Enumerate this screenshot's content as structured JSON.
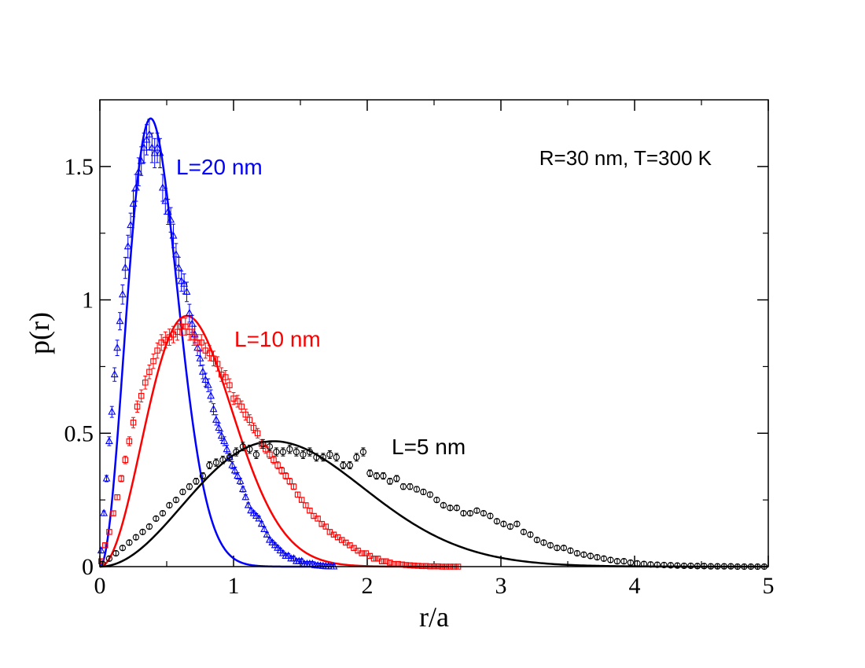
{
  "chart_data": {
    "type": "scatter",
    "xlabel": "r/a",
    "ylabel": "p(r)",
    "xlim": [
      0,
      5
    ],
    "ylim": [
      0,
      1.75
    ],
    "x_ticks": [
      0,
      1,
      2,
      3,
      4,
      5
    ],
    "x_tick_labels": [
      "0",
      "1",
      "2",
      "3",
      "4",
      "5"
    ],
    "y_ticks": [
      0,
      0.5,
      1,
      1.5
    ],
    "y_tick_labels": [
      "0",
      "0.5",
      "1",
      "1.5"
    ],
    "annotation": "R=30 nm, T=300 K",
    "series": [
      {
        "name": "L=20 nm",
        "label": "L=20 nm",
        "color": "#0000ff",
        "marker": "triangle",
        "curve": {
          "peak_x": 0.38,
          "peak_y": 1.68,
          "end_x": 1.6
        },
        "points": [
          [
            0.01,
            0.06
          ],
          [
            0.03,
            0.2
          ],
          [
            0.05,
            0.33
          ],
          [
            0.07,
            0.47
          ],
          [
            0.09,
            0.58
          ],
          [
            0.11,
            0.72
          ],
          [
            0.13,
            0.82
          ],
          [
            0.15,
            0.92
          ],
          [
            0.17,
            1.02
          ],
          [
            0.19,
            1.12
          ],
          [
            0.21,
            1.2
          ],
          [
            0.23,
            1.28
          ],
          [
            0.25,
            1.36
          ],
          [
            0.27,
            1.42
          ],
          [
            0.29,
            1.48
          ],
          [
            0.31,
            1.52
          ],
          [
            0.33,
            1.57
          ],
          [
            0.35,
            1.6
          ],
          [
            0.37,
            1.62
          ],
          [
            0.39,
            1.57
          ],
          [
            0.41,
            1.55
          ],
          [
            0.43,
            1.57
          ],
          [
            0.45,
            1.55
          ],
          [
            0.47,
            1.42
          ],
          [
            0.49,
            1.37
          ],
          [
            0.51,
            1.33
          ],
          [
            0.53,
            1.3
          ],
          [
            0.55,
            1.24
          ],
          [
            0.57,
            1.17
          ],
          [
            0.59,
            1.12
          ],
          [
            0.61,
            1.07
          ],
          [
            0.63,
            1.06
          ],
          [
            0.65,
            1.03
          ],
          [
            0.67,
            0.95
          ],
          [
            0.69,
            0.91
          ],
          [
            0.71,
            0.87
          ],
          [
            0.73,
            0.82
          ],
          [
            0.75,
            0.78
          ],
          [
            0.77,
            0.73
          ],
          [
            0.79,
            0.7
          ],
          [
            0.81,
            0.68
          ],
          [
            0.83,
            0.64
          ],
          [
            0.85,
            0.59
          ],
          [
            0.87,
            0.55
          ],
          [
            0.89,
            0.52
          ],
          [
            0.91,
            0.49
          ],
          [
            0.93,
            0.47
          ],
          [
            0.95,
            0.44
          ],
          [
            0.97,
            0.41
          ],
          [
            0.99,
            0.38
          ],
          [
            1.01,
            0.36
          ],
          [
            1.03,
            0.34
          ],
          [
            1.05,
            0.32
          ],
          [
            1.07,
            0.29
          ],
          [
            1.09,
            0.26
          ],
          [
            1.11,
            0.23
          ],
          [
            1.13,
            0.21
          ],
          [
            1.15,
            0.2
          ],
          [
            1.17,
            0.19
          ],
          [
            1.19,
            0.18
          ],
          [
            1.21,
            0.16
          ],
          [
            1.23,
            0.14
          ],
          [
            1.25,
            0.12
          ],
          [
            1.27,
            0.1
          ],
          [
            1.29,
            0.09
          ],
          [
            1.31,
            0.08
          ],
          [
            1.33,
            0.07
          ],
          [
            1.35,
            0.06
          ],
          [
            1.37,
            0.05
          ],
          [
            1.39,
            0.04
          ],
          [
            1.41,
            0.04
          ],
          [
            1.43,
            0.03
          ],
          [
            1.45,
            0.03
          ],
          [
            1.47,
            0.02
          ],
          [
            1.49,
            0.02
          ],
          [
            1.51,
            0.02
          ],
          [
            1.53,
            0.01
          ],
          [
            1.55,
            0.01
          ],
          [
            1.57,
            0.01
          ],
          [
            1.59,
            0.01
          ],
          [
            1.61,
            0.005
          ],
          [
            1.63,
            0.004
          ],
          [
            1.65,
            0.003
          ],
          [
            1.67,
            0.002
          ],
          [
            1.69,
            0.001
          ],
          [
            1.71,
            0.001
          ],
          [
            1.73,
            0.0
          ],
          [
            1.75,
            0.0
          ]
        ]
      },
      {
        "name": "L=10 nm",
        "label": "L=10 nm",
        "color": "#ff0000",
        "marker": "square",
        "curve": {
          "peak_x": 0.65,
          "peak_y": 0.94,
          "end_x": 2.6
        },
        "points": [
          [
            0.01,
            0.02
          ],
          [
            0.04,
            0.08
          ],
          [
            0.07,
            0.13
          ],
          [
            0.1,
            0.2
          ],
          [
            0.13,
            0.26
          ],
          [
            0.16,
            0.33
          ],
          [
            0.19,
            0.4
          ],
          [
            0.22,
            0.47
          ],
          [
            0.25,
            0.54
          ],
          [
            0.28,
            0.6
          ],
          [
            0.31,
            0.64
          ],
          [
            0.34,
            0.69
          ],
          [
            0.37,
            0.73
          ],
          [
            0.4,
            0.77
          ],
          [
            0.43,
            0.81
          ],
          [
            0.46,
            0.84
          ],
          [
            0.49,
            0.85
          ],
          [
            0.52,
            0.86
          ],
          [
            0.55,
            0.87
          ],
          [
            0.58,
            0.88
          ],
          [
            0.61,
            0.9
          ],
          [
            0.64,
            0.9
          ],
          [
            0.67,
            0.88
          ],
          [
            0.7,
            0.86
          ],
          [
            0.73,
            0.84
          ],
          [
            0.76,
            0.84
          ],
          [
            0.79,
            0.81
          ],
          [
            0.82,
            0.8
          ],
          [
            0.85,
            0.78
          ],
          [
            0.88,
            0.76
          ],
          [
            0.91,
            0.72
          ],
          [
            0.94,
            0.71
          ],
          [
            0.97,
            0.68
          ],
          [
            1.0,
            0.63
          ],
          [
            1.03,
            0.62
          ],
          [
            1.06,
            0.6
          ],
          [
            1.09,
            0.57
          ],
          [
            1.12,
            0.55
          ],
          [
            1.15,
            0.52
          ],
          [
            1.18,
            0.5
          ],
          [
            1.21,
            0.46
          ],
          [
            1.24,
            0.44
          ],
          [
            1.27,
            0.42
          ],
          [
            1.3,
            0.4
          ],
          [
            1.33,
            0.38
          ],
          [
            1.36,
            0.36
          ],
          [
            1.39,
            0.34
          ],
          [
            1.42,
            0.32
          ],
          [
            1.45,
            0.3
          ],
          [
            1.48,
            0.27
          ],
          [
            1.51,
            0.25
          ],
          [
            1.54,
            0.23
          ],
          [
            1.57,
            0.21
          ],
          [
            1.6,
            0.19
          ],
          [
            1.63,
            0.18
          ],
          [
            1.66,
            0.16
          ],
          [
            1.69,
            0.15
          ],
          [
            1.72,
            0.13
          ],
          [
            1.75,
            0.12
          ],
          [
            1.78,
            0.11
          ],
          [
            1.81,
            0.1
          ],
          [
            1.84,
            0.09
          ],
          [
            1.87,
            0.08
          ],
          [
            1.9,
            0.07
          ],
          [
            1.93,
            0.06
          ],
          [
            1.96,
            0.05
          ],
          [
            1.99,
            0.05
          ],
          [
            2.02,
            0.04
          ],
          [
            2.05,
            0.03
          ],
          [
            2.08,
            0.03
          ],
          [
            2.11,
            0.02
          ],
          [
            2.14,
            0.02
          ],
          [
            2.17,
            0.015
          ],
          [
            2.2,
            0.01
          ],
          [
            2.23,
            0.01
          ],
          [
            2.26,
            0.008
          ],
          [
            2.29,
            0.006
          ],
          [
            2.32,
            0.005
          ],
          [
            2.35,
            0.004
          ],
          [
            2.38,
            0.003
          ],
          [
            2.41,
            0.002
          ],
          [
            2.44,
            0.002
          ],
          [
            2.47,
            0.001
          ],
          [
            2.5,
            0.001
          ],
          [
            2.53,
            0.001
          ],
          [
            2.56,
            0.0
          ],
          [
            2.59,
            0.0
          ],
          [
            2.62,
            0.0
          ],
          [
            2.65,
            0.0
          ],
          [
            2.68,
            0.0
          ]
        ]
      },
      {
        "name": "L=5 nm",
        "label": "L=5 nm",
        "color": "#000000",
        "marker": "circle",
        "curve": {
          "peak_x": 1.3,
          "peak_y": 0.47,
          "end_x": 5.0
        },
        "points": [
          [
            0.02,
            0.01
          ],
          [
            0.07,
            0.03
          ],
          [
            0.12,
            0.05
          ],
          [
            0.17,
            0.07
          ],
          [
            0.22,
            0.09
          ],
          [
            0.27,
            0.11
          ],
          [
            0.32,
            0.13
          ],
          [
            0.37,
            0.15
          ],
          [
            0.42,
            0.18
          ],
          [
            0.47,
            0.2
          ],
          [
            0.52,
            0.23
          ],
          [
            0.57,
            0.25
          ],
          [
            0.62,
            0.28
          ],
          [
            0.67,
            0.3
          ],
          [
            0.72,
            0.32
          ],
          [
            0.77,
            0.34
          ],
          [
            0.82,
            0.38
          ],
          [
            0.87,
            0.39
          ],
          [
            0.92,
            0.4
          ],
          [
            0.97,
            0.41
          ],
          [
            1.02,
            0.43
          ],
          [
            1.07,
            0.45
          ],
          [
            1.12,
            0.44
          ],
          [
            1.17,
            0.42
          ],
          [
            1.22,
            0.46
          ],
          [
            1.27,
            0.45
          ],
          [
            1.32,
            0.43
          ],
          [
            1.37,
            0.43
          ],
          [
            1.42,
            0.44
          ],
          [
            1.47,
            0.43
          ],
          [
            1.52,
            0.42
          ],
          [
            1.57,
            0.43
          ],
          [
            1.62,
            0.41
          ],
          [
            1.67,
            0.41
          ],
          [
            1.72,
            0.42
          ],
          [
            1.77,
            0.41
          ],
          [
            1.82,
            0.38
          ],
          [
            1.87,
            0.38
          ],
          [
            1.92,
            0.41
          ],
          [
            1.97,
            0.43
          ],
          [
            2.02,
            0.35
          ],
          [
            2.07,
            0.34
          ],
          [
            2.12,
            0.34
          ],
          [
            2.17,
            0.32
          ],
          [
            2.22,
            0.33
          ],
          [
            2.27,
            0.3
          ],
          [
            2.32,
            0.3
          ],
          [
            2.37,
            0.29
          ],
          [
            2.42,
            0.28
          ],
          [
            2.47,
            0.27
          ],
          [
            2.52,
            0.25
          ],
          [
            2.57,
            0.23
          ],
          [
            2.62,
            0.22
          ],
          [
            2.67,
            0.22
          ],
          [
            2.72,
            0.2
          ],
          [
            2.77,
            0.2
          ],
          [
            2.82,
            0.21
          ],
          [
            2.87,
            0.2
          ],
          [
            2.92,
            0.19
          ],
          [
            2.97,
            0.17
          ],
          [
            3.02,
            0.16
          ],
          [
            3.07,
            0.15
          ],
          [
            3.12,
            0.16
          ],
          [
            3.17,
            0.13
          ],
          [
            3.22,
            0.12
          ],
          [
            3.27,
            0.1
          ],
          [
            3.32,
            0.09
          ],
          [
            3.37,
            0.08
          ],
          [
            3.42,
            0.07
          ],
          [
            3.47,
            0.07
          ],
          [
            3.52,
            0.06
          ],
          [
            3.57,
            0.05
          ],
          [
            3.62,
            0.045
          ],
          [
            3.67,
            0.04
          ],
          [
            3.72,
            0.035
          ],
          [
            3.77,
            0.03
          ],
          [
            3.82,
            0.025
          ],
          [
            3.87,
            0.02
          ],
          [
            3.92,
            0.02
          ],
          [
            3.97,
            0.015
          ],
          [
            4.02,
            0.012
          ],
          [
            4.07,
            0.01
          ],
          [
            4.12,
            0.008
          ],
          [
            4.17,
            0.007
          ],
          [
            4.22,
            0.006
          ],
          [
            4.27,
            0.005
          ],
          [
            4.32,
            0.004
          ],
          [
            4.37,
            0.003
          ],
          [
            4.42,
            0.003
          ],
          [
            4.47,
            0.002
          ],
          [
            4.52,
            0.002
          ],
          [
            4.57,
            0.001
          ],
          [
            4.62,
            0.001
          ],
          [
            4.67,
            0.001
          ],
          [
            4.72,
            0.001
          ],
          [
            4.77,
            0.0
          ],
          [
            4.82,
            0.0
          ],
          [
            4.87,
            0.0
          ],
          [
            4.92,
            0.0
          ],
          [
            4.97,
            0.0
          ]
        ]
      }
    ]
  }
}
